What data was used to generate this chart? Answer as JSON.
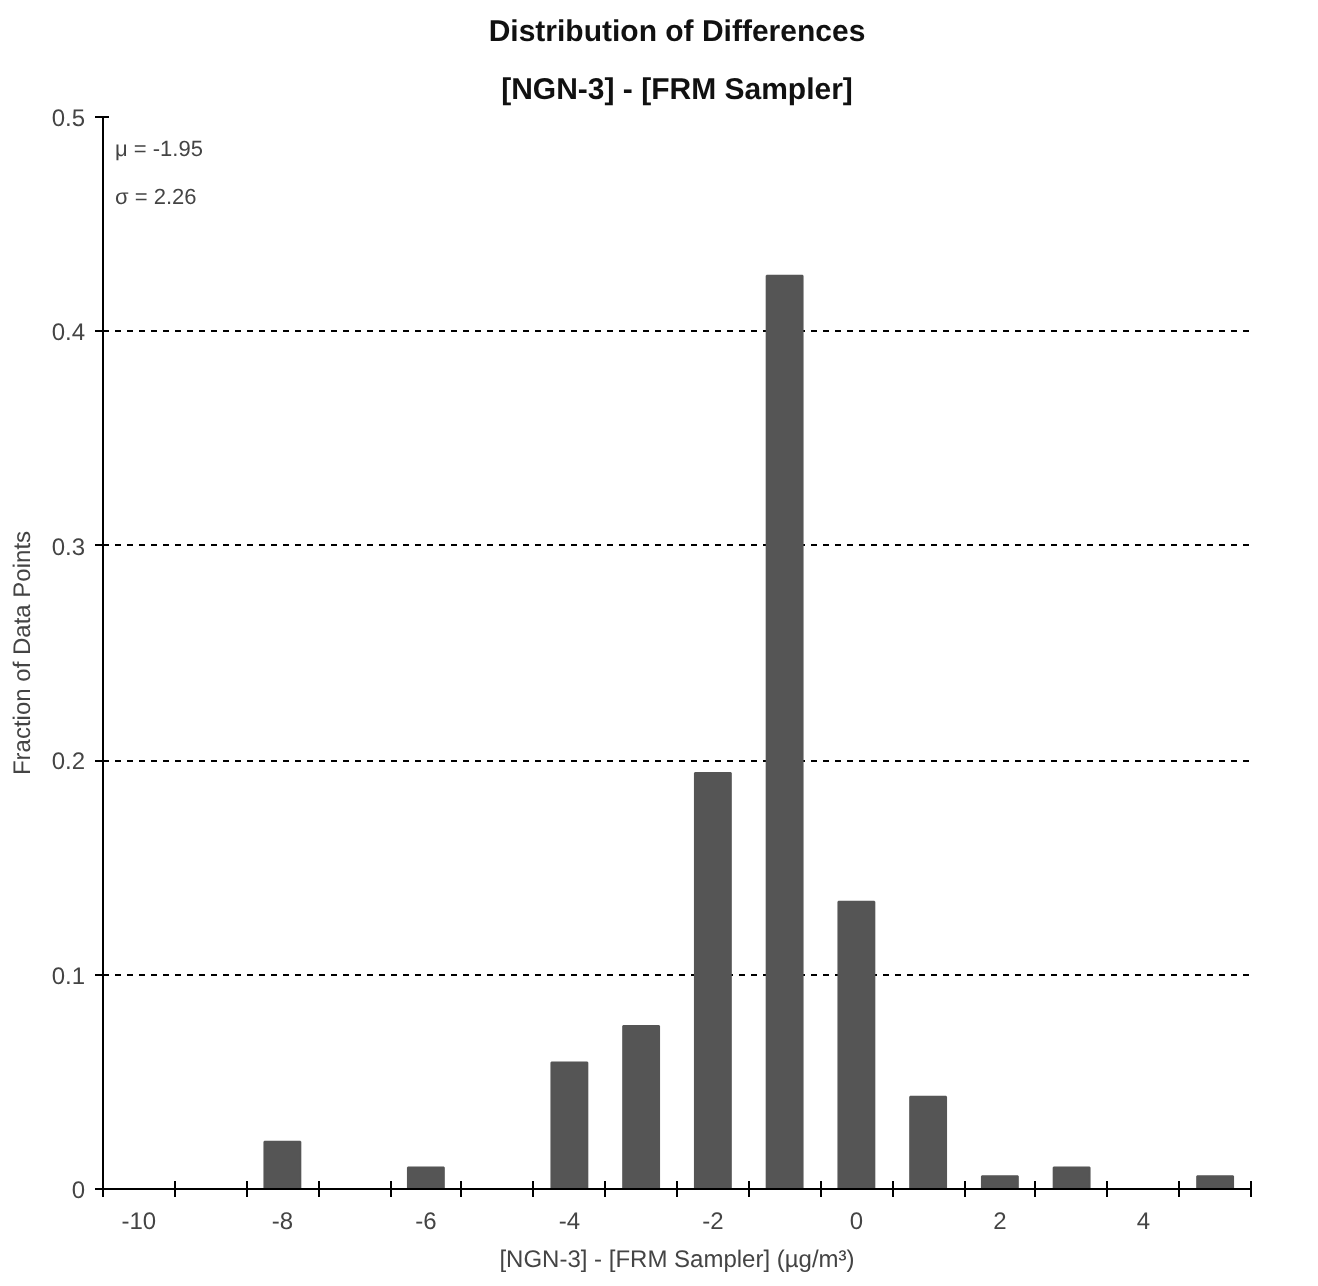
{
  "chart_data": {
    "type": "bar",
    "title": "Distribution of Differences",
    "subtitle": "[NGN-3] - [FRM Sampler]",
    "xlabel": "[NGN-3] - [FRM Sampler] (µg/m³)",
    "ylabel": "Fraction of Data Points",
    "categories": [
      "-10",
      null,
      "-8",
      null,
      "-6",
      null,
      "-4",
      null,
      "-2",
      null,
      "0",
      null,
      "2",
      null,
      "4",
      null
    ],
    "values": [
      0,
      0,
      0.022,
      0,
      0.01,
      0,
      0.059,
      0.076,
      0.194,
      0.426,
      0.134,
      0.043,
      0.006,
      0.01,
      0,
      0.006
    ],
    "color": "#555555",
    "ylim": [
      0,
      0.5
    ],
    "yticks": [
      0,
      0.1,
      0.2,
      0.3,
      0.4,
      0.5
    ],
    "grid": "y",
    "annotations": [
      "μ = -1.95",
      "σ = 2.26"
    ]
  }
}
